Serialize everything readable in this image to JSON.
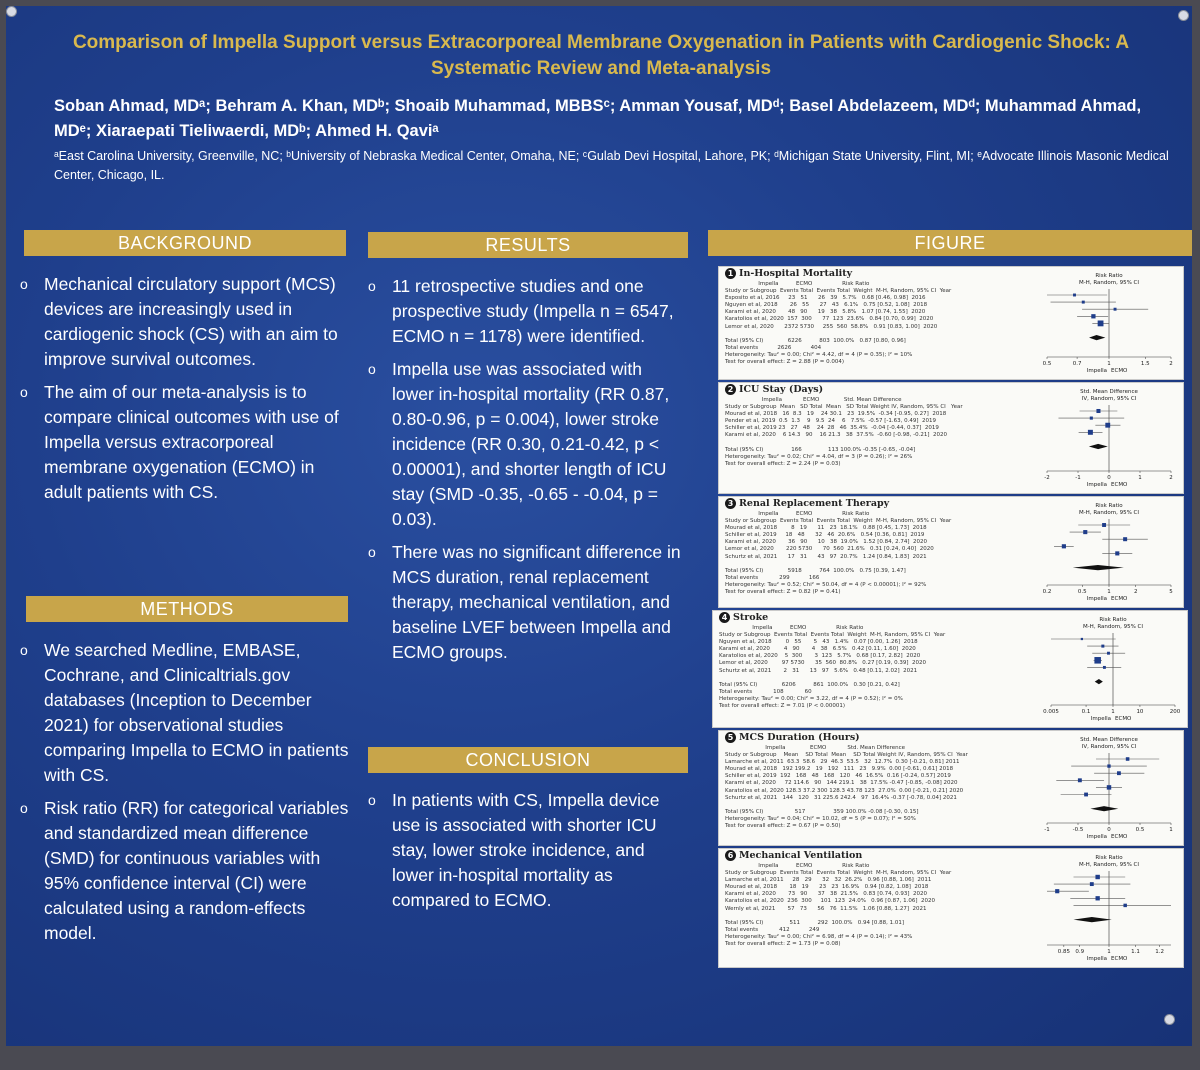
{
  "title": "Comparison of Impella Support versus Extracorporeal Membrane Oxygenation in Patients with Cardiogenic Shock: A Systematic Review and Meta-analysis",
  "authors": "Soban Ahmad, MDᵃ; Behram A. Khan, MDᵇ; Shoaib Muhammad, MBBSᶜ; Amman Yousaf, MDᵈ; Basel Abdelazeem, MDᵈ; Muhammad Ahmad, MDᵉ; Xiaraepati Tieliwaerdi, MDᵇ; Ahmed H. Qaviᵃ",
  "affiliations": "ᵃEast Carolina University, Greenville, NC; ᵇUniversity of Nebraska Medical Center, Omaha, NE; ᶜGulab Devi Hospital, Lahore, PK; ᵈMichigan State University, Flint, MI; ᵉAdvocate Illinois Masonic Medical Center, Chicago, IL.",
  "bullet_marker": "o",
  "background": {
    "heading": "BACKGROUND",
    "bullets": [
      "Mechanical circulatory support (MCS) devices are increasingly used in cardiogenic shock (CS) with an aim to improve survival outcomes.",
      "The aim of our meta-analysis is to compare clinical outcomes with use of Impella versus extracorporeal membrane oxygenation (ECMO) in adult patients with CS."
    ]
  },
  "methods": {
    "heading": "METHODS",
    "bullets": [
      "We searched Medline, EMBASE, Cochrane, and Clinicaltrials.gov databases (Inception to December 2021) for observational studies comparing Impella to ECMO in patients with CS.",
      "Risk ratio (RR) for categorical variables and standardized mean difference (SMD) for continuous variables with 95% confidence interval (CI) were calculated using a random-effects model."
    ]
  },
  "results": {
    "heading": "RESULTS",
    "bullets": [
      "11 retrospective studies and one prospective study (Impella n = 6547, ECMO n = 1178) were identified.",
      "Impella use was associated with lower in-hospital mortality (RR 0.87, 0.80-0.96, p = 0.004), lower stroke incidence (RR 0.30, 0.21-0.42, p < 0.00001), and shorter length of ICU stay (SMD -0.35, -0.65 - -0.04, p = 0.03).",
      "There was no significant difference in MCS duration, renal replacement therapy, mechanical ventilation, and baseline LVEF between Impella and ECMO groups."
    ]
  },
  "conclusion": {
    "heading": "CONCLUSION",
    "bullets": [
      "In patients with CS, Impella device use is associated with shorter ICU stay, lower stroke incidence, and lower in-hospital mortality as compared to ECMO."
    ]
  },
  "figure": {
    "heading": "FIGURE",
    "colors": {
      "point": "#1f3d8a",
      "diamond": "#111111",
      "axis": "#333333"
    },
    "panels": [
      {
        "num": "1",
        "title": "In-Hospital Mortality",
        "lines": [
          "                   Impella          ECMO                 Risk Ratio",
          "Study or Subgroup  Events Total  Events Total  Weight  M-H, Random, 95% CI  Year",
          "Esposito et al, 2016     23   51      26   39   5.7%   0.68 [0.46, 0.98]  2016",
          "Nguyen et al, 2018       26   55      27   43   6.1%   0.75 [0.52, 1.08]  2018",
          "Karami et al, 2020       48   90      19   38   5.8%   1.07 [0.74, 1.55]  2020",
          "Karatolios et al, 2020  157  300      77  123  23.6%   0.84 [0.70, 0.99]  2020",
          "Lemor et al, 2020      2372 5730     255  560  58.8%   0.91 [0.83, 1.00]  2020",
          "",
          "Total (95% CI)              6226          803  100.0%   0.87 [0.80, 0.96]",
          "Total events           2626           404",
          "Heterogeneity: Tau² = 0.00; Chi² = 4.42, df = 4 (P = 0.35); I² = 10%",
          "Test for overall effect: Z = 2.88 (P = 0.004)"
        ],
        "chart_data": {
          "type": "scatter",
          "title": "Risk Ratio",
          "subtitle": "M-H, Random, 95% CI",
          "scale": "log",
          "ticks": [
            "0.5",
            "0.7",
            "1",
            "1.5",
            "2"
          ],
          "xlim": [
            0.5,
            2
          ],
          "xlabel_left": "Impella",
          "xlabel_right": "ECMO",
          "studies": [
            {
              "est": 0.68,
              "lo": 0.46,
              "hi": 0.98,
              "weight": 5.7
            },
            {
              "est": 0.75,
              "lo": 0.52,
              "hi": 1.08,
              "weight": 6.1
            },
            {
              "est": 1.07,
              "lo": 0.74,
              "hi": 1.55,
              "weight": 5.8
            },
            {
              "est": 0.84,
              "lo": 0.7,
              "hi": 0.99,
              "weight": 23.6
            },
            {
              "est": 0.91,
              "lo": 0.83,
              "hi": 1.0,
              "weight": 58.8
            }
          ],
          "overall": {
            "est": 0.87,
            "lo": 0.8,
            "hi": 0.96
          },
          "ref": 1
        }
      },
      {
        "num": "2",
        "title": "ICU Stay (Days)",
        "lines": [
          "                     Impella            ECMO              Std. Mean Difference",
          "Study or Subgroup  Mean   SD Total  Mean   SD Total Weight IV, Random, 95% CI   Year",
          "Mourad et al, 2018   16  8.3   19    24 30.1   23  19.5%  -0.34 [-0.95, 0.27]  2018",
          "Pender et al, 2019  0.5  1.3    9   9.5  24    6   7.5%  -0.57 [-1.63, 0.49]  2019",
          "Schiller et al, 2019 23   27   48    24  28   46  35.4%  -0.04 [-0.44, 0.37]  2019",
          "Karami et al, 2020    6 14.3   90    16 21.3   38  37.5%  -0.60 [-0.98, -0.21]  2020",
          "",
          "Total (95% CI)                166               113 100.0% -0.35 [-0.65, -0.04]",
          "Heterogeneity: Tau² = 0.02; Chi² = 4.04, df = 3 (P = 0.26); I² = 26%",
          "Test for overall effect: Z = 2.24 (P = 0.03)"
        ],
        "chart_data": {
          "type": "scatter",
          "title": "Std. Mean Difference",
          "subtitle": "IV, Random, 95% CI",
          "scale": "linear",
          "ticks": [
            "-2",
            "-1",
            "0",
            "1",
            "2"
          ],
          "xlim": [
            -2,
            2
          ],
          "xlabel_left": "Impella",
          "xlabel_right": "ECMO",
          "studies": [
            {
              "est": -0.34,
              "lo": -0.95,
              "hi": 0.27,
              "weight": 19.5
            },
            {
              "est": -0.57,
              "lo": -1.63,
              "hi": 0.49,
              "weight": 7.5
            },
            {
              "est": -0.04,
              "lo": -0.44,
              "hi": 0.37,
              "weight": 35.4
            },
            {
              "est": -0.6,
              "lo": -0.98,
              "hi": -0.21,
              "weight": 37.5
            }
          ],
          "overall": {
            "est": -0.35,
            "lo": -0.65,
            "hi": -0.04
          },
          "ref": 0
        }
      },
      {
        "num": "3",
        "title": "Renal Replacement Therapy",
        "lines": [
          "                   Impella          ECMO                 Risk Ratio",
          "Study or Subgroup  Events Total  Events Total  Weight  M-H, Random, 95% CI  Year",
          "Mourad et al, 2018        8   19      11   23  18.1%   0.88 [0.45, 1.73]  2018",
          "Schiller et al, 2019     18   48      32   46  20.6%   0.54 [0.36, 0.81]  2019",
          "Karami et al, 2020       36   90      10   38  19.0%   1.52 [0.84, 2.74]  2020",
          "Lemor et al, 2020       220 5730      70  560  21.6%   0.31 [0.24, 0.40]  2020",
          "Schurtz et al, 2021      17   31      43   97  20.7%   1.24 [0.84, 1.83]  2021",
          "",
          "Total (95% CI)              5918          764  100.0%   0.75 [0.39, 1.47]",
          "Total events            299           166",
          "Heterogeneity: Tau² = 0.52; Chi² = 50.04, df = 4 (P < 0.00001); I² = 92%",
          "Test for overall effect: Z = 0.82 (P = 0.41)"
        ],
        "chart_data": {
          "type": "scatter",
          "title": "Risk Ratio",
          "subtitle": "M-H, Random, 95% CI",
          "scale": "log",
          "ticks": [
            "0.2",
            "0.5",
            "1",
            "2",
            "5"
          ],
          "xlim": [
            0.2,
            5
          ],
          "xlabel_left": "Impella",
          "xlabel_right": "ECMO",
          "studies": [
            {
              "est": 0.88,
              "lo": 0.45,
              "hi": 1.73,
              "weight": 18.1
            },
            {
              "est": 0.54,
              "lo": 0.36,
              "hi": 0.81,
              "weight": 20.6
            },
            {
              "est": 1.52,
              "lo": 0.84,
              "hi": 2.74,
              "weight": 19.0
            },
            {
              "est": 0.31,
              "lo": 0.24,
              "hi": 0.4,
              "weight": 21.6
            },
            {
              "est": 1.24,
              "lo": 0.84,
              "hi": 1.83,
              "weight": 20.7
            }
          ],
          "overall": {
            "est": 0.75,
            "lo": 0.39,
            "hi": 1.47
          },
          "ref": 1
        }
      },
      {
        "num": "4",
        "title": "Stroke",
        "lines": [
          "                   Impella          ECMO                 Risk Ratio",
          "Study or Subgroup  Events Total  Events Total  Weight  M-H, Random, 95% CI  Year",
          "Nguyen et al, 2018        0   55       5   43   1.4%   0.07 [0.00, 1.26]  2018",
          "Karami et al, 2020        4   90       4   38   6.5%   0.42 [0.11, 1.60]  2020",
          "Karatolios et al, 2020    5  300       3  123   5.7%   0.68 [0.17, 2.82]  2020",
          "Lemor et al, 2020        97 5730      35  560  80.8%   0.27 [0.19, 0.39]  2020",
          "Schurtz et al, 2021       2   31      13   97   5.6%   0.48 [0.11, 2.02]  2021",
          "",
          "Total (95% CI)              6206          861  100.0%   0.30 [0.21, 0.42]",
          "Total events            108            60",
          "Heterogeneity: Tau² = 0.00; Chi² = 3.22, df = 4 (P = 0.52); I² = 0%",
          "Test for overall effect: Z = 7.01 (P < 0.00001)"
        ],
        "chart_data": {
          "type": "scatter",
          "title": "Risk Ratio",
          "subtitle": "M-H, Random, 95% CI",
          "scale": "log",
          "ticks": [
            "0.005",
            "0.1",
            "1",
            "10",
            "200"
          ],
          "xlim": [
            0.005,
            200
          ],
          "xlabel_left": "Impella",
          "xlabel_right": "ECMO",
          "studies": [
            {
              "est": 0.07,
              "lo": 0.005,
              "hi": 1.26,
              "weight": 1.4
            },
            {
              "est": 0.42,
              "lo": 0.11,
              "hi": 1.6,
              "weight": 6.5
            },
            {
              "est": 0.68,
              "lo": 0.17,
              "hi": 2.82,
              "weight": 5.7
            },
            {
              "est": 0.27,
              "lo": 0.19,
              "hi": 0.39,
              "weight": 80.8
            },
            {
              "est": 0.48,
              "lo": 0.11,
              "hi": 2.02,
              "weight": 5.6
            }
          ],
          "overall": {
            "est": 0.3,
            "lo": 0.21,
            "hi": 0.42
          },
          "ref": 1
        }
      },
      {
        "num": "5",
        "title": "MCS Duration (Hours)",
        "lines": [
          "                       Impella              ECMO            Std. Mean Difference",
          "Study or Subgroup    Mean    SD Total  Mean    SD Total Weight IV, Random, 95% CI  Year",
          "Lamarche et al, 2011  63.3  58.6   29  46.3  53.5   32  12.7%  0.30 [-0.21, 0.81] 2011",
          "Mourad et al, 2018   192 199.2   19   192   111   23   9.9%  0.00 [-0.61, 0.61] 2018",
          "Schiller et al, 2019  192   168   48   168   120   46  16.5%  0.16 [-0.24, 0.57] 2019",
          "Karami et al, 2020     72 114.6   90   144 219.1   38  17.5% -0.47 [-0.85, -0.08] 2020",
          "Karatolios et al, 2020 128.3 37.2 300 128.3 43.78 123  27.0%  0.00 [-0.21, 0.21] 2020",
          "Schurtz et al, 2021   144   120   31 225.6 242.4   97  16.4% -0.37 [-0.78, 0.04] 2021",
          "",
          "Total (95% CI)                  517                359 100.0% -0.08 [-0.30, 0.15]",
          "Heterogeneity: Tau² = 0.04; Chi² = 10.02, df = 5 (P = 0.07); I² = 50%",
          "Test for overall effect: Z = 0.67 (P = 0.50)"
        ],
        "chart_data": {
          "type": "scatter",
          "title": "Std. Mean Difference",
          "subtitle": "IV, Random, 95% CI",
          "scale": "linear",
          "ticks": [
            "-1",
            "-0.5",
            "0",
            "0.5",
            "1"
          ],
          "xlim": [
            -1,
            1
          ],
          "xlabel_left": "Impella",
          "xlabel_right": "ECMO",
          "studies": [
            {
              "est": 0.3,
              "lo": -0.21,
              "hi": 0.81,
              "weight": 12.7
            },
            {
              "est": 0.0,
              "lo": -0.61,
              "hi": 0.61,
              "weight": 9.9
            },
            {
              "est": 0.16,
              "lo": -0.24,
              "hi": 0.57,
              "weight": 16.5
            },
            {
              "est": -0.47,
              "lo": -0.85,
              "hi": -0.08,
              "weight": 17.5
            },
            {
              "est": 0.0,
              "lo": -0.21,
              "hi": 0.21,
              "weight": 27.0
            },
            {
              "est": -0.37,
              "lo": -0.78,
              "hi": 0.04,
              "weight": 16.4
            }
          ],
          "overall": {
            "est": -0.08,
            "lo": -0.3,
            "hi": 0.15
          },
          "ref": 0
        }
      },
      {
        "num": "6",
        "title": "Mechanical Ventilation",
        "lines": [
          "                   Impella          ECMO                 Risk Ratio",
          "Study or Subgroup  Events Total  Events Total  Weight  M-H, Random, 95% CI  Year",
          "Lamarche et al, 2011     28   29      32   32  26.2%   0.96 [0.88, 1.06]  2011",
          "Mourad et al, 2018       18   19      23   23  16.9%   0.94 [0.82, 1.08]  2018",
          "Karami et al, 2020       73   90      37   38  21.5%   0.83 [0.74, 0.93]  2020",
          "Karatolios et al, 2020  236  300     101  123  24.0%   0.96 [0.87, 1.06]  2020",
          "Wernly et al, 2021       57   73      56   76  11.5%   1.06 [0.88, 1.27]  2021",
          "",
          "Total (95% CI)               511          292  100.0%   0.94 [0.88, 1.01]",
          "Total events            412           249",
          "Heterogeneity: Tau² = 0.00; Chi² = 6.98, df = 4 (P = 0.14); I² = 43%",
          "Test for overall effect: Z = 1.73 (P = 0.08)"
        ],
        "chart_data": {
          "type": "scatter",
          "title": "Risk Ratio",
          "subtitle": "M-H, Random, 95% CI",
          "scale": "log",
          "ticks": [
            "0.85",
            "0.9",
            "1",
            "1.1",
            "1.2"
          ],
          "xlim": [
            0.8,
            1.25
          ],
          "xlabel_left": "Impella",
          "xlabel_right": "ECMO",
          "studies": [
            {
              "est": 0.96,
              "lo": 0.88,
              "hi": 1.06,
              "weight": 26.2
            },
            {
              "est": 0.94,
              "lo": 0.82,
              "hi": 1.08,
              "weight": 16.9
            },
            {
              "est": 0.83,
              "lo": 0.74,
              "hi": 0.93,
              "weight": 21.5
            },
            {
              "est": 0.96,
              "lo": 0.87,
              "hi": 1.06,
              "weight": 24.0
            },
            {
              "est": 1.06,
              "lo": 0.88,
              "hi": 1.27,
              "weight": 11.5
            }
          ],
          "overall": {
            "est": 0.94,
            "lo": 0.88,
            "hi": 1.01
          },
          "ref": 1
        }
      }
    ]
  }
}
